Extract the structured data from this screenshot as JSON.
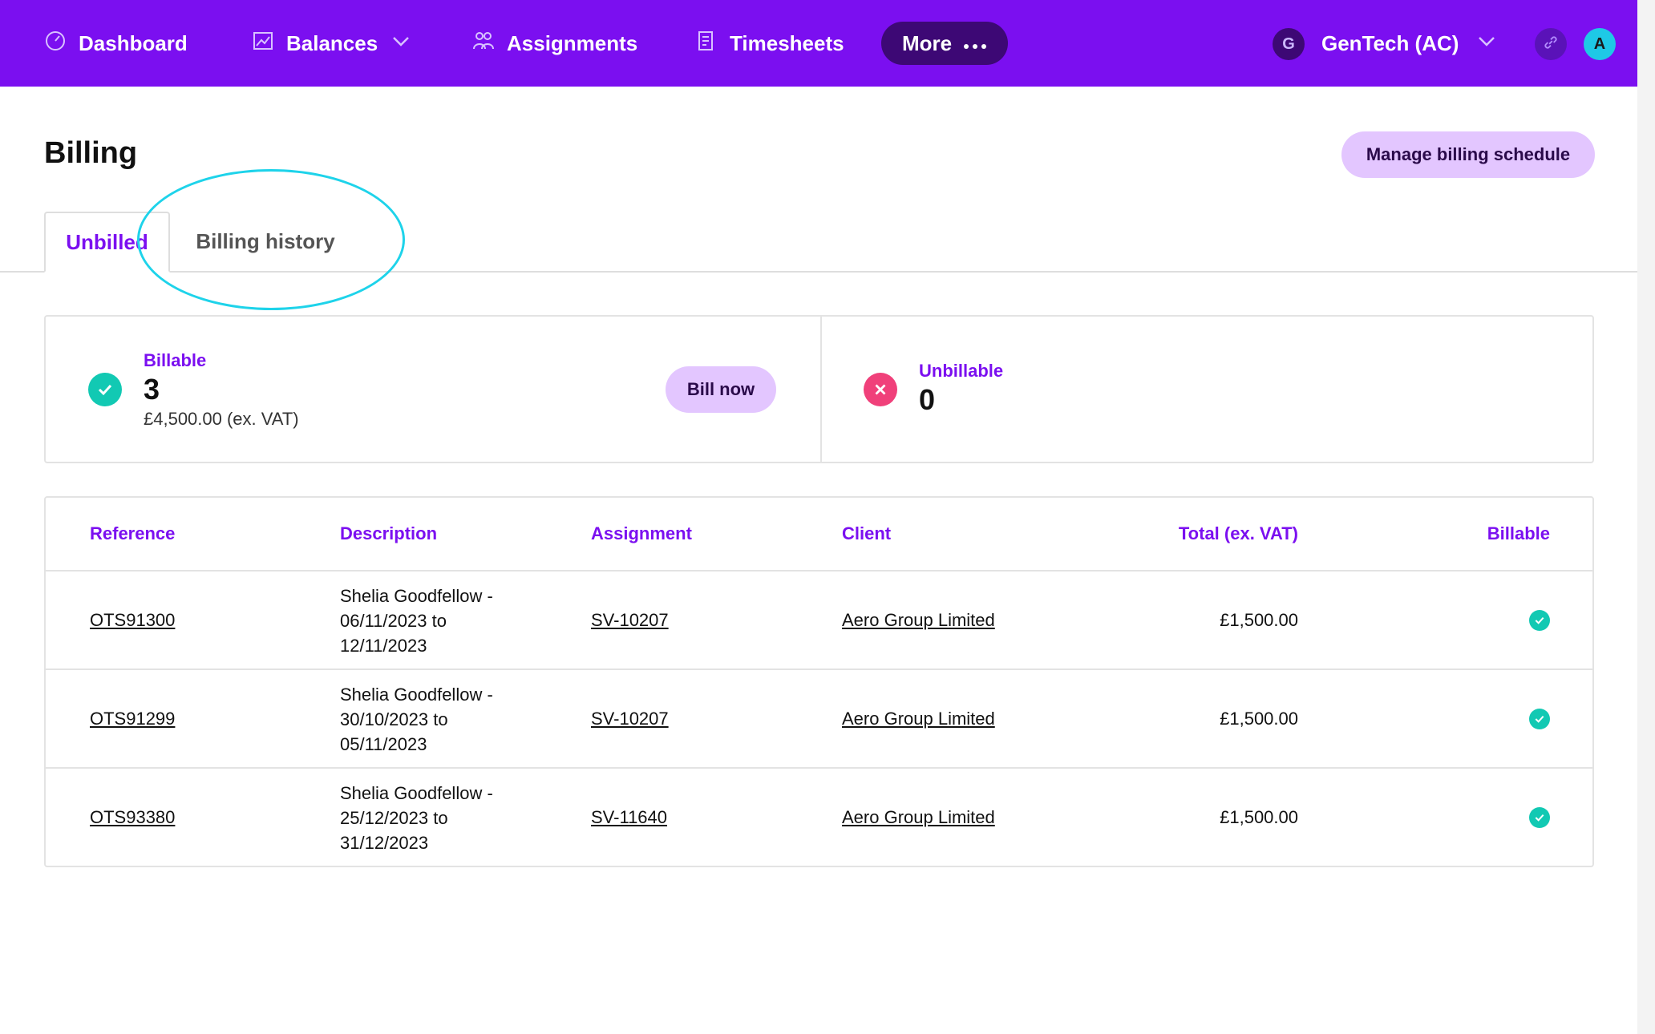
{
  "nav": {
    "dashboard": "Dashboard",
    "balances": "Balances",
    "assignments": "Assignments",
    "timesheets": "Timesheets",
    "more": "More",
    "org_initial": "G",
    "org_name": "GenTech (AC)",
    "avatar_initial": "A"
  },
  "page": {
    "title": "Billing",
    "manage_button": "Manage billing schedule"
  },
  "tabs": {
    "unbilled": "Unbilled",
    "history": "Billing history"
  },
  "summary": {
    "billable_label": "Billable",
    "billable_count": "3",
    "billable_amount": "£4,500.00 (ex. VAT)",
    "bill_now": "Bill now",
    "unbillable_label": "Unbillable",
    "unbillable_count": "0"
  },
  "table": {
    "headers": {
      "reference": "Reference",
      "description": "Description",
      "assignment": "Assignment",
      "client": "Client",
      "total": "Total (ex. VAT)",
      "billable": "Billable"
    },
    "rows": [
      {
        "reference": "OTS91300",
        "description": "Shelia Goodfellow -\n06/11/2023 to\n12/11/2023",
        "assignment": "SV-10207",
        "client": "Aero Group Limited",
        "total": "£1,500.00"
      },
      {
        "reference": "OTS91299",
        "description": "Shelia Goodfellow -\n30/10/2023 to\n05/11/2023",
        "assignment": "SV-10207",
        "client": "Aero Group Limited",
        "total": "£1,500.00"
      },
      {
        "reference": "OTS93380",
        "description": "Shelia Goodfellow -\n25/12/2023 to\n31/12/2023",
        "assignment": "SV-11640",
        "client": "Aero Group Limited",
        "total": "£1,500.00"
      }
    ]
  },
  "colors": {
    "brand": "#7b0ff0",
    "success": "#12c9b3",
    "danger": "#f0407a",
    "highlight": "#1ed3ea"
  }
}
